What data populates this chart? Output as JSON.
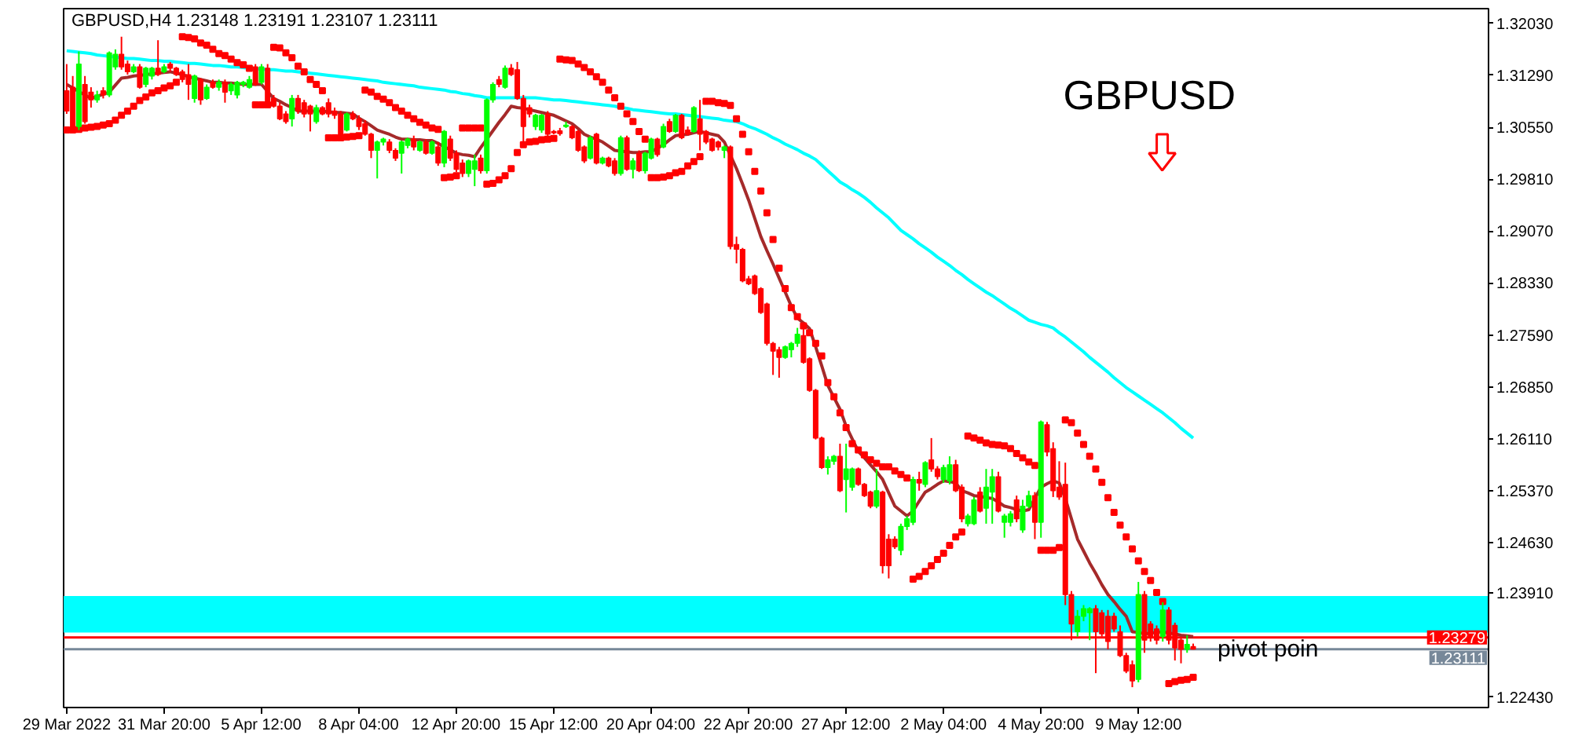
{
  "chart_data": {
    "type": "candlestick",
    "title": "GBPUSD,H4 1.23148 1.23191 1.23107 1.23111",
    "categories": [
      "29 Mar 2022",
      null,
      null,
      null,
      null,
      null,
      null,
      null,
      null,
      null,
      null,
      null,
      null,
      null,
      null,
      null,
      "31 Mar 20:00",
      null,
      null,
      null,
      null,
      null,
      null,
      null,
      null,
      null,
      null,
      null,
      null,
      null,
      null,
      null,
      "5 Apr 12:00",
      null,
      null,
      null,
      null,
      null,
      null,
      null,
      null,
      null,
      null,
      null,
      null,
      null,
      null,
      null,
      "8 Apr 04:00",
      null,
      null,
      null,
      null,
      null,
      null,
      null,
      null,
      null,
      null,
      null,
      null,
      null,
      null,
      null,
      "12 Apr 20:00",
      null,
      null,
      null,
      null,
      null,
      null,
      null,
      null,
      null,
      null,
      null,
      null,
      null,
      null,
      null,
      "15 Apr 12:00",
      null,
      null,
      null,
      null,
      null,
      null,
      null,
      null,
      null,
      null,
      null,
      null,
      null,
      null,
      null,
      "20 Apr 04:00",
      null,
      null,
      null,
      null,
      null,
      null,
      null,
      null,
      null,
      null,
      null,
      null,
      null,
      null,
      null,
      "22 Apr 20:00",
      null,
      null,
      null,
      null,
      null,
      null,
      null,
      null,
      null,
      null,
      null,
      null,
      null,
      null,
      null,
      "27 Apr 12:00",
      null,
      null,
      null,
      null,
      null,
      null,
      null,
      null,
      null,
      null,
      null,
      null,
      null,
      null,
      null,
      "2 May 04:00",
      null,
      null,
      null,
      null,
      null,
      null,
      null,
      null,
      null,
      null,
      null,
      null,
      null,
      null,
      null,
      "4 May 20:00",
      null,
      null,
      null,
      null,
      null,
      null,
      null,
      null,
      null,
      null,
      null,
      null,
      null,
      null,
      null,
      "9 May 12:00",
      null,
      null,
      null,
      null,
      null,
      null,
      null,
      null,
      null
    ],
    "ohlc": [
      [
        1.3107,
        1.3145,
        1.3074,
        1.3078
      ],
      [
        1.3112,
        1.3128,
        1.3054,
        1.3056
      ],
      [
        1.3056,
        1.3163,
        1.3051,
        1.3145
      ],
      [
        1.3116,
        1.3128,
        1.306,
        1.3063
      ],
      [
        1.3105,
        1.3112,
        1.3083,
        1.3094
      ],
      [
        1.3094,
        1.3107,
        1.309,
        1.3101
      ],
      [
        1.3107,
        1.3112,
        1.3096,
        1.3101
      ],
      [
        1.3101,
        1.3163,
        1.3098,
        1.3161
      ],
      [
        1.3141,
        1.3166,
        1.3137,
        1.3159
      ],
      [
        1.3159,
        1.3184,
        1.3137,
        1.3141
      ],
      [
        1.3145,
        1.315,
        1.313,
        1.3134
      ],
      [
        1.3134,
        1.3145,
        1.3132,
        1.3141
      ],
      [
        1.3141,
        1.3145,
        1.311,
        1.3112
      ],
      [
        1.3116,
        1.3141,
        1.3112,
        1.3139
      ],
      [
        1.3128,
        1.3141,
        1.3123,
        1.3139
      ],
      [
        1.3139,
        1.3179,
        1.3128,
        1.313
      ],
      [
        1.3134,
        1.3145,
        1.3132,
        1.3141
      ],
      [
        1.3145,
        1.3148,
        1.3134,
        1.3139
      ],
      [
        1.3139,
        1.3141,
        1.3128,
        1.313
      ],
      [
        1.3134,
        1.3137,
        1.3119,
        1.3123
      ],
      [
        1.313,
        1.3145,
        1.3094,
        1.3116
      ],
      [
        1.3096,
        1.313,
        1.309,
        1.3128
      ],
      [
        1.3123,
        1.3125,
        1.3087,
        1.3094
      ],
      [
        1.3096,
        1.3116,
        1.3094,
        1.3112
      ],
      [
        1.3119,
        1.3123,
        1.311,
        1.3112
      ],
      [
        1.3112,
        1.3123,
        1.3107,
        1.3119
      ],
      [
        1.3119,
        1.3123,
        1.309,
        1.3105
      ],
      [
        1.3107,
        1.3119,
        1.3101,
        1.3116
      ],
      [
        1.3101,
        1.3121,
        1.3096,
        1.3119
      ],
      [
        1.3116,
        1.3121,
        1.3112,
        1.3119
      ],
      [
        1.3112,
        1.3128,
        1.311,
        1.3123
      ],
      [
        1.3141,
        1.3145,
        1.3114,
        1.3116
      ],
      [
        1.3119,
        1.3145,
        1.3116,
        1.3141
      ],
      [
        1.3139,
        1.3145,
        1.3083,
        1.3085
      ],
      [
        1.3096,
        1.3101,
        1.3083,
        1.3085
      ],
      [
        1.3085,
        1.309,
        1.3065,
        1.3067
      ],
      [
        1.3074,
        1.3078,
        1.306,
        1.3063
      ],
      [
        1.3067,
        1.3101,
        1.3056,
        1.3096
      ],
      [
        1.3096,
        1.3101,
        1.3074,
        1.3078
      ],
      [
        1.309,
        1.3094,
        1.3069,
        1.3074
      ],
      [
        1.3085,
        1.3087,
        1.3049,
        1.3074
      ],
      [
        1.3063,
        1.3087,
        1.306,
        1.3083
      ],
      [
        1.3083,
        1.3085,
        1.3072,
        1.3074
      ],
      [
        1.309,
        1.3096,
        1.3069,
        1.3074
      ],
      [
        1.3078,
        1.3083,
        1.3067,
        1.3072
      ],
      [
        1.3074,
        1.3078,
        1.3043,
        1.3045
      ],
      [
        1.3051,
        1.3076,
        1.3049,
        1.3074
      ],
      [
        1.3074,
        1.3078,
        1.3065,
        1.3067
      ],
      [
        1.3067,
        1.3072,
        1.3051,
        1.3056
      ],
      [
        1.306,
        1.3065,
        1.3043,
        1.3045
      ],
      [
        1.3045,
        1.3047,
        1.3011,
        1.3022
      ],
      [
        1.3022,
        1.3036,
        1.2982,
        1.3034
      ],
      [
        1.3034,
        1.304,
        1.3029,
        1.3038
      ],
      [
        1.3034,
        1.3038,
        1.3018,
        1.3022
      ],
      [
        1.3022,
        1.3025,
        1.3007,
        1.3011
      ],
      [
        1.3018,
        1.3036,
        1.2989,
        1.3034
      ],
      [
        1.3029,
        1.304,
        1.3025,
        1.3038
      ],
      [
        1.3038,
        1.3043,
        1.3022,
        1.3027
      ],
      [
        1.3022,
        1.3036,
        1.302,
        1.3034
      ],
      [
        1.3034,
        1.3038,
        1.3016,
        1.3018
      ],
      [
        1.3018,
        1.3036,
        1.3016,
        1.3034
      ],
      [
        1.3027,
        1.3034,
        1.3,
        1.3004
      ],
      [
        1.3004,
        1.3051,
        1.2998,
        1.3049
      ],
      [
        1.3038,
        1.3043,
        1.3007,
        1.3011
      ],
      [
        1.3018,
        1.3022,
        1.2991,
        1.2995
      ],
      [
        1.3004,
        1.3009,
        1.2984,
        1.2989
      ],
      [
        1.2989,
        1.3009,
        1.2984,
        1.3007
      ],
      [
        1.2995,
        1.3016,
        1.2971,
        1.3007
      ],
      [
        1.3011,
        1.3016,
        1.2989,
        1.2993
      ],
      [
        1.2993,
        1.3096,
        1.2989,
        1.3094
      ],
      [
        1.3094,
        1.3119,
        1.309,
        1.3116
      ],
      [
        1.3123,
        1.3128,
        1.3112,
        1.3116
      ],
      [
        1.3112,
        1.3143,
        1.311,
        1.3139
      ],
      [
        1.3139,
        1.3145,
        1.3128,
        1.313
      ],
      [
        1.3137,
        1.3148,
        1.3094,
        1.3096
      ],
      [
        1.3096,
        1.3101,
        1.3031,
        1.3056
      ],
      [
        1.3083,
        1.3087,
        1.3069,
        1.3074
      ],
      [
        1.3056,
        1.3074,
        1.3051,
        1.3072
      ],
      [
        1.3051,
        1.3074,
        1.3047,
        1.3072
      ],
      [
        1.3074,
        1.3078,
        1.304,
        1.3045
      ],
      [
        1.3049,
        1.3051,
        1.3045,
        1.3047
      ],
      [
        1.305,
        1.3054,
        1.3043,
        1.3046
      ],
      [
        1.3056,
        1.3063,
        1.3054,
        1.3058
      ],
      [
        1.3056,
        1.3058,
        1.3038,
        1.304
      ],
      [
        1.3049,
        1.3051,
        1.302,
        1.3022
      ],
      [
        1.3027,
        1.3029,
        1.3004,
        1.3007
      ],
      [
        1.3011,
        1.3043,
        1.3009,
        1.304
      ],
      [
        1.3045,
        1.3047,
        1.3002,
        1.3004
      ],
      [
        1.3004,
        1.3013,
        1.3002,
        1.3011
      ],
      [
        1.3011,
        1.3013,
        1.2998,
        1.3
      ],
      [
        1.3007,
        1.3011,
        1.2986,
        1.2989
      ],
      [
        1.2989,
        1.3043,
        1.2986,
        1.304
      ],
      [
        1.304,
        1.3043,
        1.2993,
        1.2995
      ],
      [
        1.2995,
        1.3011,
        1.2982,
        1.3007
      ],
      [
        1.3018,
        1.3022,
        1.2991,
        1.2993
      ],
      [
        1.2993,
        1.302,
        1.2989,
        1.3018
      ],
      [
        1.3011,
        1.304,
        1.3009,
        1.3038
      ],
      [
        1.3038,
        1.304,
        1.3013,
        1.3016
      ],
      [
        1.3027,
        1.306,
        1.3025,
        1.3056
      ],
      [
        1.3063,
        1.3067,
        1.3047,
        1.3049
      ],
      [
        1.3049,
        1.3074,
        1.3047,
        1.3072
      ],
      [
        1.3072,
        1.3074,
        1.3038,
        1.304
      ],
      [
        1.3051,
        1.3056,
        1.3043,
        1.3045
      ],
      [
        1.3049,
        1.3085,
        1.3047,
        1.3083
      ],
      [
        1.3067,
        1.3094,
        1.3022,
        1.3045
      ],
      [
        1.3049,
        1.3051,
        1.3031,
        1.3034
      ],
      [
        1.3038,
        1.304,
        1.302,
        1.3022
      ],
      [
        1.3034,
        1.3036,
        1.3022,
        1.3027
      ],
      [
        1.3022,
        1.3029,
        1.3011,
        1.3027
      ],
      [
        1.3027,
        1.3029,
        1.2881,
        1.2885
      ],
      [
        1.2888,
        1.2899,
        1.2861,
        1.2881
      ],
      [
        1.2881,
        1.2883,
        1.2834,
        1.2836
      ],
      [
        1.2839,
        1.2843,
        1.283,
        1.2832
      ],
      [
        1.2843,
        1.2845,
        1.2816,
        1.2818
      ],
      [
        1.2825,
        1.2827,
        1.2789,
        1.2791
      ],
      [
        1.2803,
        1.2805,
        1.2744,
        1.2747
      ],
      [
        1.2747,
        1.2749,
        1.2702,
        1.2736
      ],
      [
        1.2738,
        1.2742,
        1.2698,
        1.2727
      ],
      [
        1.2727,
        1.2744,
        1.2725,
        1.2742
      ],
      [
        1.2738,
        1.2749,
        1.2727,
        1.2747
      ],
      [
        1.2747,
        1.2769,
        1.2742,
        1.276
      ],
      [
        1.2758,
        1.2771,
        1.2718,
        1.272
      ],
      [
        1.2725,
        1.2727,
        1.2678,
        1.268
      ],
      [
        1.268,
        1.2682,
        1.261,
        1.2612
      ],
      [
        1.2612,
        1.2614,
        1.2568,
        1.257
      ],
      [
        1.257,
        1.2586,
        1.256,
        1.2581
      ],
      [
        1.2579,
        1.2588,
        1.2574,
        1.2586
      ],
      [
        1.2586,
        1.2604,
        1.2535,
        1.2537
      ],
      [
        1.2553,
        1.2604,
        1.2506,
        1.2568
      ],
      [
        1.2542,
        1.257,
        1.2537,
        1.2568
      ],
      [
        1.2568,
        1.257,
        1.2544,
        1.2546
      ],
      [
        1.2546,
        1.2548,
        1.2528,
        1.253
      ],
      [
        1.2535,
        1.2537,
        1.2512,
        1.2515
      ],
      [
        1.2515,
        1.2568,
        1.2512,
        1.2537
      ],
      [
        1.2535,
        1.2537,
        1.2419,
        1.243
      ],
      [
        1.2468,
        1.2475,
        1.2412,
        1.243
      ],
      [
        1.2468,
        1.2472,
        1.2454,
        1.2457
      ],
      [
        1.2452,
        1.249,
        1.2445,
        1.2486
      ],
      [
        1.2486,
        1.2501,
        1.2481,
        1.2497
      ],
      [
        1.2492,
        1.2557,
        1.2488,
        1.2553
      ],
      [
        1.2553,
        1.2564,
        1.2537,
        1.2548
      ],
      [
        1.2546,
        1.2579,
        1.2542,
        1.2577
      ],
      [
        1.2581,
        1.2612,
        1.2564,
        1.2568
      ],
      [
        1.2568,
        1.2572,
        1.2553,
        1.2557
      ],
      [
        1.2553,
        1.2574,
        1.2548,
        1.257
      ],
      [
        1.2551,
        1.2586,
        1.2546,
        1.2574
      ],
      [
        1.2574,
        1.2581,
        1.2535,
        1.2537
      ],
      [
        1.2542,
        1.2546,
        1.2492,
        1.2497
      ],
      [
        1.249,
        1.2504,
        1.2486,
        1.2501
      ],
      [
        1.249,
        1.2528,
        1.2488,
        1.2524
      ],
      [
        1.2535,
        1.2542,
        1.2506,
        1.2508
      ],
      [
        1.2512,
        1.2568,
        1.249,
        1.2542
      ],
      [
        1.2535,
        1.2568,
        1.249,
        1.2557
      ],
      [
        1.2557,
        1.2564,
        1.2506,
        1.2508
      ],
      [
        1.2492,
        1.2504,
        1.247,
        1.2501
      ],
      [
        1.2492,
        1.2508,
        1.2486,
        1.2504
      ],
      [
        1.2524,
        1.253,
        1.2492,
        1.2497
      ],
      [
        1.2481,
        1.2524,
        1.2477,
        1.2515
      ],
      [
        1.2515,
        1.2537,
        1.2512,
        1.253
      ],
      [
        1.253,
        1.2535,
        1.2468,
        1.2492
      ],
      [
        1.2492,
        1.2637,
        1.247,
        1.2635
      ],
      [
        1.2631,
        1.2635,
        1.2586,
        1.2592
      ],
      [
        1.2597,
        1.2606,
        1.2528,
        1.2537
      ],
      [
        1.2542,
        1.2579,
        1.2524,
        1.2528
      ],
      [
        1.2546,
        1.2577,
        1.2374,
        1.2389
      ],
      [
        1.2389,
        1.2394,
        1.2324,
        1.2347
      ],
      [
        1.2336,
        1.2367,
        1.2329,
        1.2358
      ],
      [
        1.2358,
        1.2374,
        1.2351,
        1.2369
      ],
      [
        1.2363,
        1.2371,
        1.2324,
        1.2369
      ],
      [
        1.2369,
        1.2374,
        1.2277,
        1.2336
      ],
      [
        1.2363,
        1.2367,
        1.2329,
        1.2333
      ],
      [
        1.2358,
        1.2367,
        1.2311,
        1.2322
      ],
      [
        1.2358,
        1.2363,
        1.2336,
        1.234
      ],
      [
        1.2336,
        1.2345,
        1.23,
        1.2302
      ],
      [
        1.2302,
        1.2306,
        1.2277,
        1.228
      ],
      [
        1.2289,
        1.2295,
        1.2257,
        1.2266
      ],
      [
        1.2268,
        1.2407,
        1.2264,
        1.2389
      ],
      [
        1.2389,
        1.2394,
        1.2306,
        1.2324
      ],
      [
        1.2347,
        1.2351,
        1.2322,
        1.2329
      ],
      [
        1.234,
        1.2345,
        1.2318,
        1.2324
      ],
      [
        1.2329,
        1.2378,
        1.2322,
        1.2367
      ],
      [
        1.2367,
        1.2371,
        1.2318,
        1.2324
      ],
      [
        1.2345,
        1.2349,
        1.2295,
        1.2313
      ],
      [
        1.2324,
        1.2329,
        1.2291,
        1.2311
      ],
      [
        1.2311,
        1.2331,
        1.2306,
        1.2318
      ],
      [
        1.23148,
        1.23191,
        1.23107,
        1.23111
      ]
    ],
    "colors": [
      "#ff0000",
      "#ff0000",
      "#00ff00",
      "#ff0000",
      "#ff0000",
      "#00ff00",
      "#ff0000",
      "#00ff00",
      "#00ff00",
      "#ff0000",
      "#ff0000",
      "#00ff00",
      "#ff0000",
      "#00ff00",
      "#00ff00",
      "#ff0000",
      "#00ff00",
      "#ff0000",
      "#ff0000",
      "#ff0000",
      "#ff0000",
      "#00ff00",
      "#ff0000",
      "#00ff00",
      "#ff0000",
      "#00ff00",
      "#ff0000",
      "#00ff00",
      "#00ff00",
      "#00ff00",
      "#00ff00",
      "#ff0000",
      "#00ff00",
      "#ff0000",
      "#ff0000",
      "#ff0000",
      "#ff0000",
      "#00ff00",
      "#ff0000",
      "#ff0000",
      "#ff0000",
      "#00ff00",
      "#ff0000",
      "#ff0000",
      "#ff0000",
      "#ff0000",
      "#00ff00",
      "#ff0000",
      "#ff0000",
      "#ff0000",
      "#ff0000",
      "#00ff00",
      "#00ff00",
      "#ff0000",
      "#ff0000",
      "#00ff00",
      "#00ff00",
      "#ff0000",
      "#00ff00",
      "#ff0000",
      "#00ff00",
      "#ff0000",
      "#00ff00",
      "#ff0000",
      "#ff0000",
      "#ff0000",
      "#00ff00",
      "#00ff00",
      "#ff0000",
      "#00ff00",
      "#00ff00",
      "#ff0000",
      "#00ff00",
      "#ff0000",
      "#ff0000",
      "#ff0000",
      "#ff0000",
      "#00ff00",
      "#00ff00",
      "#ff0000",
      "#ff0000",
      "#ff0000",
      "#00ff00",
      "#ff0000",
      "#ff0000",
      "#ff0000",
      "#00ff00",
      "#ff0000",
      "#00ff00",
      "#ff0000",
      "#ff0000",
      "#00ff00",
      "#ff0000",
      "#00ff00",
      "#ff0000",
      "#00ff00",
      "#00ff00",
      "#ff0000",
      "#00ff00",
      "#ff0000",
      "#00ff00",
      "#ff0000",
      "#ff0000",
      "#00ff00",
      "#ff0000",
      "#ff0000",
      "#ff0000",
      "#ff0000",
      "#00ff00",
      "#ff0000",
      "#ff0000",
      "#ff0000",
      "#ff0000",
      "#ff0000",
      "#ff0000",
      "#ff0000",
      "#ff0000",
      "#ff0000",
      "#00ff00",
      "#00ff00",
      "#00ff00",
      "#ff0000",
      "#ff0000",
      "#ff0000",
      "#ff0000",
      "#00ff00",
      "#00ff00",
      "#ff0000",
      "#00ff00",
      "#00ff00",
      "#ff0000",
      "#ff0000",
      "#ff0000",
      "#00ff00",
      "#ff0000",
      "#ff0000",
      "#ff0000",
      "#00ff00",
      "#00ff00",
      "#00ff00",
      "#ff0000",
      "#00ff00",
      "#ff0000",
      "#ff0000",
      "#00ff00",
      "#00ff00",
      "#ff0000",
      "#ff0000",
      "#00ff00",
      "#00ff00",
      "#ff0000",
      "#00ff00",
      "#00ff00",
      "#ff0000",
      "#00ff00",
      "#00ff00",
      "#ff0000",
      "#00ff00",
      "#00ff00",
      "#ff0000",
      "#00ff00",
      "#ff0000",
      "#ff0000",
      "#ff0000",
      "#ff0000",
      "#ff0000",
      "#00ff00",
      "#00ff00",
      "#00ff00",
      "#ff0000",
      "#ff0000",
      "#ff0000",
      "#ff0000",
      "#ff0000",
      "#ff0000",
      "#ff0000",
      "#00ff00",
      "#ff0000",
      "#ff0000",
      "#ff0000",
      "#00ff00",
      "#ff0000",
      "#ff0000",
      "#ff0000",
      "#00ff00",
      "#ff0000"
    ],
    "series": [
      {
        "type": "line",
        "color": "#00ffff",
        "values": [
          1.3164,
          1.3163,
          1.3162,
          1.3161,
          1.316,
          1.3158,
          1.3157,
          1.3156,
          1.3155,
          1.3154,
          1.3153,
          1.3153,
          1.3152,
          1.3151,
          1.315,
          1.315,
          1.3149,
          1.3149,
          1.3148,
          1.3147,
          1.3146,
          1.3146,
          1.3145,
          1.3144,
          1.3143,
          1.3143,
          1.3142,
          1.3141,
          1.3141,
          1.314,
          1.3139,
          1.3138,
          1.3138,
          1.3137,
          1.3137,
          1.3136,
          1.3135,
          1.3135,
          1.3134,
          1.3133,
          1.3132,
          1.3131,
          1.313,
          1.3129,
          1.3128,
          1.3127,
          1.3126,
          1.3125,
          1.3124,
          1.3123,
          1.3122,
          1.3121,
          1.3119,
          1.3118,
          1.3117,
          1.3116,
          1.3115,
          1.3114,
          1.3112,
          1.3111,
          1.311,
          1.3109,
          1.3108,
          1.3106,
          1.3105,
          1.3103,
          1.3102,
          1.31,
          1.3099,
          1.3097,
          1.3097,
          1.3097,
          1.3097,
          1.3097,
          1.3097,
          1.3097,
          1.3097,
          1.3097,
          1.3096,
          1.3095,
          1.3094,
          1.3094,
          1.3093,
          1.3092,
          1.3091,
          1.309,
          1.3089,
          1.3088,
          1.3087,
          1.3086,
          1.3085,
          1.3083,
          1.3082,
          1.308,
          1.3079,
          1.3078,
          1.3077,
          1.3076,
          1.3075,
          1.3074,
          1.3074,
          1.3073,
          1.3072,
          1.3071,
          1.307,
          1.3069,
          1.3068,
          1.3067,
          1.3065,
          1.3064,
          1.3063,
          1.306,
          1.3056,
          1.3053,
          1.3049,
          1.3045,
          1.304,
          1.3036,
          1.3031,
          1.3027,
          1.3023,
          1.3018,
          1.3014,
          1.3009,
          1.3001,
          1.2993,
          1.2985,
          1.2977,
          1.2972,
          1.2966,
          1.2961,
          1.2955,
          1.2948,
          1.294,
          1.2933,
          1.2926,
          1.2917,
          1.2908,
          1.2902,
          1.2896,
          1.2889,
          1.2883,
          1.2877,
          1.287,
          1.2864,
          1.2858,
          1.2851,
          1.2845,
          1.2838,
          1.2832,
          1.2826,
          1.282,
          1.2815,
          1.2809,
          1.2803,
          1.2797,
          1.2792,
          1.2786,
          1.278,
          1.2777,
          1.2774,
          1.2772,
          1.2769,
          1.2762,
          1.2756,
          1.2749,
          1.2742,
          1.2735,
          1.2727,
          1.272,
          1.2713,
          1.2706,
          1.2698,
          1.2691,
          1.2684,
          1.2678,
          1.2672,
          1.2666,
          1.266,
          1.2654,
          1.2648,
          1.2641,
          1.2634,
          1.2626,
          1.2619,
          1.2612
        ]
      },
      {
        "type": "line",
        "color": "#a52a2a",
        "values": [
          1.3116,
          1.3111,
          1.3106,
          1.3101,
          1.3096,
          1.3099,
          1.3102,
          1.3105,
          1.3115,
          1.3125,
          1.3126,
          1.3128,
          1.3129,
          1.313,
          1.3131,
          1.3132,
          1.3133,
          1.3134,
          1.3132,
          1.313,
          1.3127,
          1.3125,
          1.3123,
          1.3121,
          1.3119,
          1.3119,
          1.3118,
          1.3118,
          1.3117,
          1.3116,
          1.3116,
          1.3116,
          1.3116,
          1.3106,
          1.3096,
          1.3092,
          1.3087,
          1.3083,
          1.3078,
          1.3078,
          1.3078,
          1.3078,
          1.3078,
          1.3077,
          1.3076,
          1.3076,
          1.3075,
          1.3074,
          1.3068,
          1.3063,
          1.3057,
          1.3051,
          1.3048,
          1.3045,
          1.3041,
          1.3038,
          1.3038,
          1.3037,
          1.3037,
          1.3036,
          1.3036,
          1.3032,
          1.3027,
          1.3023,
          1.3018,
          1.3016,
          1.3015,
          1.3013,
          1.3026,
          1.3038,
          1.305,
          1.3062,
          1.3073,
          1.3085,
          1.3083,
          1.3082,
          1.308,
          1.3078,
          1.3076,
          1.3074,
          1.3072,
          1.3068,
          1.3064,
          1.306,
          1.3053,
          1.3045,
          1.3041,
          1.3038,
          1.3034,
          1.3028,
          1.3022,
          1.3021,
          1.302,
          1.3019,
          1.3019,
          1.302,
          1.302,
          1.3025,
          1.303,
          1.3037,
          1.3043,
          1.3044,
          1.3045,
          1.3047,
          1.3049,
          1.3047,
          1.3045,
          1.3043,
          1.3034,
          1.3015,
          1.2996,
          1.2974,
          1.2951,
          1.2925,
          1.2899,
          1.2879,
          1.286,
          1.284,
          1.282,
          1.28,
          1.2783,
          1.2776,
          1.2768,
          1.2742,
          1.2715,
          1.2687,
          1.267,
          1.2653,
          1.2629,
          1.2611,
          1.2593,
          1.2584,
          1.2574,
          1.2564,
          1.2553,
          1.2534,
          1.2515,
          1.2508,
          1.2501,
          1.2508,
          1.2522,
          1.2535,
          1.254,
          1.2546,
          1.2551,
          1.255,
          1.2548,
          1.2537,
          1.2534,
          1.253,
          1.2529,
          1.2527,
          1.2526,
          1.2521,
          1.2515,
          1.2513,
          1.251,
          1.2508,
          1.251,
          1.2526,
          1.2542,
          1.2547,
          1.2551,
          1.2548,
          1.2526,
          1.2497,
          1.2468,
          1.2451,
          1.2434,
          1.2419,
          1.2403,
          1.2389,
          1.2379,
          1.2368,
          1.2358,
          1.2336,
          1.2335,
          1.2333,
          1.2334,
          1.2335,
          1.2336,
          1.2334,
          1.2333,
          1.2331,
          1.233,
          1.2329
        ]
      },
      {
        "type": "scatter",
        "color": "#ff0000",
        "marker": "square",
        "values": [
          1.3051,
          1.3051,
          1.3052,
          1.3054,
          1.3055,
          1.3056,
          1.3058,
          1.306,
          1.3065,
          1.3072,
          1.3078,
          1.3085,
          1.3093,
          1.3098,
          1.3104,
          1.3107,
          1.3111,
          1.3114,
          1.3119,
          1.3184,
          1.3183,
          1.3181,
          1.3175,
          1.3172,
          1.3166,
          1.316,
          1.3157,
          1.3152,
          1.3147,
          1.3144,
          1.3139,
          1.3087,
          1.3087,
          1.3087,
          1.3169,
          1.3168,
          1.3161,
          1.3154,
          1.3142,
          1.3134,
          1.3123,
          1.3116,
          1.3107,
          1.304,
          1.304,
          1.304,
          1.3041,
          1.3042,
          1.3043,
          1.3108,
          1.3105,
          1.3099,
          1.3095,
          1.309,
          1.3083,
          1.3078,
          1.3072,
          1.3067,
          1.3062,
          1.3058,
          1.3054,
          1.3052,
          1.2983,
          1.2984,
          1.2986,
          1.3054,
          1.3054,
          1.3054,
          1.3054,
          1.2974,
          1.2975,
          1.298,
          1.2986,
          1.2996,
          1.3019,
          1.303,
          1.3034,
          1.3035,
          1.3037,
          1.3038,
          1.3039,
          1.3152,
          1.3151,
          1.315,
          1.3145,
          1.314,
          1.3134,
          1.3127,
          1.3119,
          1.3108,
          1.3097,
          1.3085,
          1.3074,
          1.3063,
          1.3049,
          1.3038,
          1.2983,
          1.2983,
          1.2984,
          1.2986,
          1.299,
          1.2992,
          1.3,
          1.3006,
          1.3013,
          1.3092,
          1.3092,
          1.309,
          1.3089,
          1.3086,
          1.3067,
          1.3045,
          1.302,
          1.2992,
          1.2964,
          1.2933,
          1.2895,
          1.2854,
          1.2825,
          1.2798,
          1.2785,
          1.2772,
          1.2762,
          1.2747,
          1.2729,
          1.2691,
          1.2671,
          1.2648,
          1.2627,
          1.2604,
          1.2595,
          1.2588,
          1.2581,
          1.2576,
          1.2571,
          1.2571,
          1.2565,
          1.256,
          1.2555,
          1.2411,
          1.2415,
          1.2422,
          1.243,
          1.2439,
          1.2448,
          1.2459,
          1.2471,
          1.2478,
          1.2615,
          1.2612,
          1.2609,
          1.2605,
          1.2603,
          1.2602,
          1.2601,
          1.2597,
          1.259,
          1.2584,
          1.2578,
          1.2573,
          1.2452,
          1.2452,
          1.2452,
          1.2456,
          1.2638,
          1.2634,
          1.2619,
          1.2603,
          1.2586,
          1.2568,
          1.2549,
          1.2527,
          1.2506,
          1.2488,
          1.2471,
          1.2454,
          1.2437,
          1.2422,
          1.2409,
          1.2392,
          1.2379,
          1.2262,
          1.2265,
          1.2267,
          1.2268,
          1.2271
        ]
      }
    ],
    "ylim": [
      1.2228,
      1.3224
    ],
    "yticks": [
      {
        "value": 1.3203,
        "label": "1.32030"
      },
      {
        "value": 1.3129,
        "label": "1.31290"
      },
      {
        "value": 1.3055,
        "label": "1.30550"
      },
      {
        "value": 1.2981,
        "label": "1.29810"
      },
      {
        "value": 1.2907,
        "label": "1.29070"
      },
      {
        "value": 1.2833,
        "label": "1.28330"
      },
      {
        "value": 1.2759,
        "label": "1.27590"
      },
      {
        "value": 1.2685,
        "label": "1.26850"
      },
      {
        "value": 1.2611,
        "label": "1.26110"
      },
      {
        "value": 1.2537,
        "label": "1.25370"
      },
      {
        "value": 1.2463,
        "label": "1.24630"
      },
      {
        "value": 1.2391,
        "label": "1.23910"
      },
      {
        "value": 1.2243,
        "label": "1.22430"
      }
    ],
    "bands": [
      {
        "axis": "y",
        "from": 1.2335,
        "to": 1.2387,
        "color": "#00ffff"
      }
    ],
    "ref_lines": [
      {
        "axis": "y",
        "value": 1.23279,
        "label": "1.23279",
        "color": "#ff0000"
      },
      {
        "axis": "y",
        "value": 1.23111,
        "label": "1.23111",
        "color": "#778899"
      }
    ],
    "annotations": [
      "GBPUSD",
      {
        "text": "pivot poin",
        "y": 1.2311
      }
    ]
  }
}
